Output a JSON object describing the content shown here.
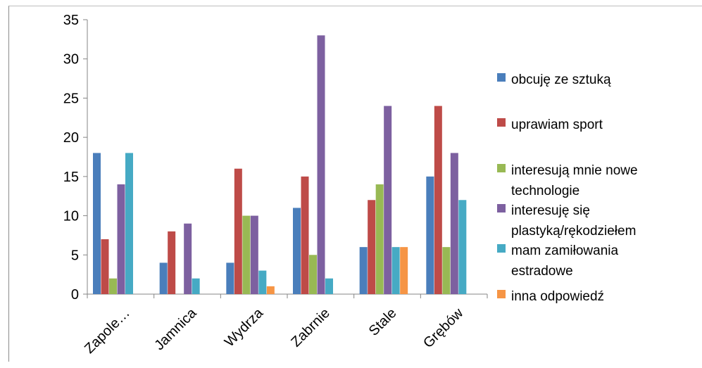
{
  "chart_data": {
    "type": "bar",
    "title": "",
    "xlabel": "",
    "ylabel": "",
    "categories": [
      "Zapole…",
      "Jamnica",
      "Wydrza",
      "Zabrnie",
      "Stale",
      "Grębów"
    ],
    "ylim": [
      0,
      35
    ],
    "yticks": [
      0,
      5,
      10,
      15,
      20,
      25,
      30,
      35
    ],
    "grid": false,
    "legend_position": "right",
    "series": [
      {
        "name": "obcuję ze sztuką",
        "color": "#4a7ebb",
        "values": [
          18,
          4,
          4,
          11,
          6,
          15
        ]
      },
      {
        "name": "uprawiam sport",
        "color": "#be4b48",
        "values": [
          7,
          8,
          16,
          15,
          12,
          24
        ]
      },
      {
        "name": "interesują mnie nowe technologie",
        "color": "#98b954",
        "values": [
          2,
          0,
          10,
          5,
          14,
          6
        ]
      },
      {
        "name": "interesuję się plastyką/rękodziełem",
        "color": "#7d60a0",
        "values": [
          14,
          9,
          10,
          33,
          24,
          18
        ]
      },
      {
        "name": "mam zamiłowania estradowe",
        "color": "#46aac4",
        "values": [
          18,
          2,
          3,
          2,
          6,
          12
        ]
      },
      {
        "name": "inna odpowiedź",
        "color": "#f69545",
        "values": [
          0,
          0,
          1,
          0,
          6,
          0
        ]
      }
    ]
  }
}
